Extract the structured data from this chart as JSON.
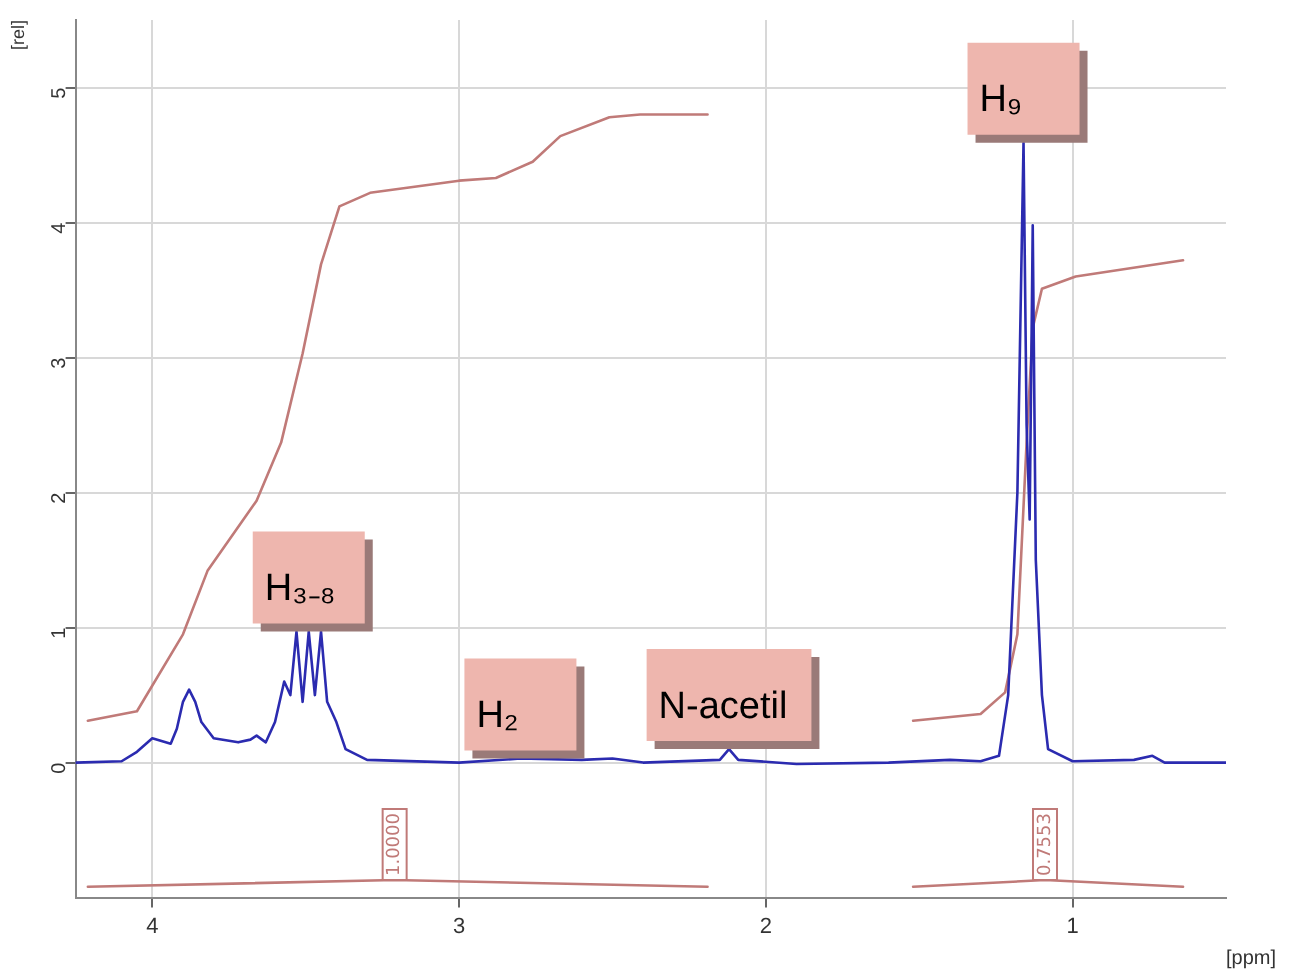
{
  "chart_data": {
    "type": "line",
    "xlabel": "[ppm]",
    "ylabel": "[rel]",
    "xlim": [
      4.25,
      0.5
    ],
    "xticks": [
      4,
      3,
      2,
      1
    ],
    "ylim": [
      -1,
      5.5
    ],
    "yticks": [
      0,
      1,
      2,
      3,
      4,
      5
    ],
    "grid": true,
    "legend": false,
    "marker": "none",
    "line_style": "solid",
    "series": [
      {
        "color": "#2b2bb0",
        "x": [
          4.25,
          4.1,
          4.05,
          4.0,
          3.97,
          3.94,
          3.92,
          3.9,
          3.88,
          3.86,
          3.84,
          3.8,
          3.72,
          3.68,
          3.66,
          3.63,
          3.6,
          3.57,
          3.55,
          3.53,
          3.51,
          3.49,
          3.47,
          3.45,
          3.43,
          3.4,
          3.37,
          3.3,
          3.0,
          2.8,
          2.6,
          2.5,
          2.4,
          2.15,
          2.12,
          2.09,
          1.9,
          1.6,
          1.4,
          1.3,
          1.24,
          1.21,
          1.18,
          1.16,
          1.15,
          1.14,
          1.13,
          1.12,
          1.1,
          1.08,
          1.0,
          0.8,
          0.74,
          0.7,
          0.5
        ],
        "values": [
          0,
          0.01,
          0.08,
          0.18,
          0.16,
          0.14,
          0.25,
          0.45,
          0.54,
          0.45,
          0.3,
          0.18,
          0.15,
          0.17,
          0.2,
          0.15,
          0.3,
          0.6,
          0.5,
          0.97,
          0.45,
          0.97,
          0.5,
          0.97,
          0.45,
          0.3,
          0.1,
          0.02,
          0,
          0.03,
          0.02,
          0.03,
          0,
          0.02,
          0.1,
          0.02,
          -0.01,
          0,
          0.02,
          0.01,
          0.05,
          0.5,
          2.0,
          4.59,
          2.5,
          1.8,
          3.98,
          1.5,
          0.5,
          0.1,
          0.01,
          0.02,
          0.05,
          0,
          0
        ]
      },
      {
        "color": "#c07a78",
        "x": [
          4.21,
          4.05,
          3.9,
          3.82,
          3.66,
          3.58,
          3.51,
          3.45,
          3.39,
          3.29,
          3.0,
          2.88,
          2.76,
          2.67,
          2.51,
          2.41,
          2.19
        ],
        "values": [
          0.31,
          0.38,
          0.95,
          1.42,
          1.94,
          2.37,
          3.03,
          3.69,
          4.12,
          4.22,
          4.31,
          4.33,
          4.45,
          4.64,
          4.78,
          4.8,
          4.8
        ]
      },
      {
        "color": "#c07a78",
        "x": [
          1.52,
          1.3,
          1.22,
          1.18,
          1.15,
          1.13,
          1.1,
          0.99,
          0.64
        ],
        "values": [
          0.31,
          0.36,
          0.52,
          0.95,
          2.37,
          3.22,
          3.51,
          3.6,
          3.72
        ]
      },
      {
        "color": "#c07a78",
        "x": [
          4.21,
          3.21,
          2.19
        ],
        "values": [
          -0.92,
          -0.87,
          -0.92
        ]
      },
      {
        "color": "#c07a78",
        "x": [
          1.52,
          1.09,
          0.64
        ],
        "values": [
          -0.92,
          -0.87,
          -0.92
        ]
      }
    ],
    "annotations": [
      {
        "text": "H₃₋₈",
        "x": 3.49,
        "y": 0.97
      },
      {
        "text": "H₂",
        "x": 2.8,
        "y": 0.03
      },
      {
        "text": "N-acetil",
        "x": 2.12,
        "y": 0.1
      },
      {
        "text": "H₉",
        "x": 1.16,
        "y": 4.59
      },
      {
        "text": "1.0000",
        "x": 3.21,
        "y": -0.87
      },
      {
        "text": "0.7553",
        "x": 1.09,
        "y": -0.87
      }
    ]
  }
}
